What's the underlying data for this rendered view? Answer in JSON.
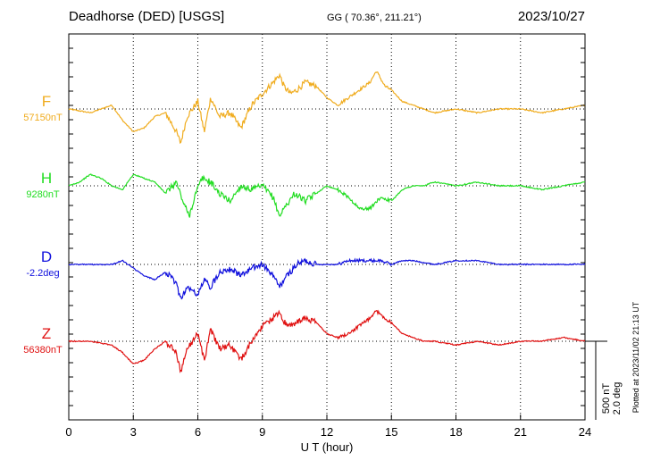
{
  "header": {
    "station": "Deadhorse (DED)  [USGS]",
    "coords": "GG ( 70.36°, 211.21°)",
    "date": "2023/10/27"
  },
  "footer": {
    "plotted": "Plotted at 2023/11/02 21:13 UT"
  },
  "scale": {
    "nt": "500 nT",
    "deg": "2.0 deg"
  },
  "colors": {
    "F": "#f0ac1e",
    "H": "#22dd22",
    "D": "#1010dd",
    "Z": "#e01010"
  },
  "chart_data": {
    "type": "line",
    "xlabel": "U T (hour)",
    "xlim": [
      0,
      24
    ],
    "xticks": [
      "0",
      "3",
      "6",
      "9",
      "12",
      "15",
      "18",
      "21",
      "24"
    ],
    "series": [
      {
        "name": "F",
        "baseline": "57150nT",
        "x": [
          0,
          1,
          2,
          2.5,
          3,
          3.5,
          4,
          4.5,
          5,
          5.2,
          5.5,
          6,
          6.3,
          6.6,
          7,
          7.5,
          8,
          8.5,
          9,
          9.5,
          9.8,
          10,
          10.3,
          10.6,
          11,
          11.5,
          12,
          12.5,
          13,
          13.5,
          14,
          14.3,
          14.7,
          15,
          15.5,
          16,
          16.5,
          17,
          18,
          19,
          20,
          21,
          22,
          23,
          24
        ],
        "y": [
          0,
          -5,
          5,
          -15,
          -30,
          -25,
          -10,
          -5,
          -30,
          -45,
          -10,
          10,
          -30,
          15,
          -10,
          -5,
          -25,
          5,
          20,
          35,
          45,
          30,
          20,
          25,
          35,
          30,
          15,
          5,
          15,
          25,
          35,
          50,
          30,
          25,
          10,
          5,
          0,
          -5,
          0,
          -5,
          0,
          0,
          -5,
          0,
          5
        ]
      },
      {
        "name": "H",
        "baseline": "9280nT",
        "x": [
          0,
          0.5,
          1,
          1.5,
          2,
          2.5,
          3,
          3.5,
          4,
          4.5,
          5,
          5.3,
          5.6,
          5.9,
          6.2,
          6.6,
          7,
          7.5,
          8,
          8.5,
          9,
          9.5,
          9.8,
          10,
          10.5,
          11,
          11.5,
          12,
          12.5,
          13,
          13.5,
          14,
          14.5,
          15,
          15.5,
          16,
          16.5,
          17,
          18,
          19,
          20,
          21,
          22,
          23,
          24
        ],
        "y": [
          0,
          5,
          15,
          10,
          0,
          -5,
          15,
          10,
          5,
          -10,
          5,
          -20,
          -40,
          -10,
          10,
          5,
          -10,
          -20,
          0,
          -5,
          0,
          -15,
          -40,
          -30,
          -10,
          -20,
          -10,
          0,
          -5,
          -15,
          -30,
          -30,
          -15,
          -20,
          -5,
          0,
          0,
          5,
          0,
          5,
          0,
          0,
          -5,
          0,
          5
        ]
      },
      {
        "name": "D",
        "baseline": "-2.2deg",
        "x": [
          0,
          1,
          2,
          2.5,
          3,
          3.5,
          4,
          4.5,
          5,
          5.2,
          5.5,
          6,
          6.3,
          6.6,
          7,
          7.5,
          8,
          8.5,
          9,
          9.5,
          9.8,
          10,
          10.3,
          10.6,
          11,
          11.5,
          12,
          12.5,
          13,
          13.5,
          14,
          14.5,
          15,
          15.5,
          16,
          17,
          18,
          19,
          20,
          21,
          22,
          23,
          24
        ],
        "y": [
          0,
          0,
          0,
          5,
          -5,
          -15,
          -20,
          -10,
          -25,
          -45,
          -30,
          -40,
          -20,
          -30,
          -10,
          -5,
          -15,
          -5,
          0,
          -15,
          -30,
          -20,
          -10,
          0,
          5,
          0,
          0,
          0,
          5,
          5,
          5,
          5,
          0,
          5,
          5,
          0,
          5,
          5,
          0,
          0,
          0,
          0,
          0
        ]
      },
      {
        "name": "Z",
        "baseline": "56380nT",
        "x": [
          0,
          1,
          2,
          2.5,
          3,
          3.5,
          4,
          4.5,
          5,
          5.2,
          5.5,
          6,
          6.3,
          6.6,
          7,
          7.5,
          8,
          8.5,
          9,
          9.5,
          9.8,
          10,
          10.3,
          10.6,
          11,
          11.5,
          12,
          12.5,
          13,
          13.5,
          14,
          14.3,
          14.7,
          15,
          15.5,
          16,
          16.5,
          17,
          18,
          19,
          20,
          21,
          22,
          23,
          24
        ],
        "y": [
          0,
          0,
          -5,
          -15,
          -30,
          -25,
          -10,
          0,
          -15,
          -40,
          -10,
          10,
          -25,
          15,
          -10,
          -5,
          -25,
          0,
          20,
          30,
          40,
          25,
          20,
          25,
          30,
          25,
          10,
          5,
          10,
          20,
          30,
          40,
          30,
          25,
          10,
          5,
          0,
          0,
          -5,
          0,
          -5,
          0,
          0,
          5,
          0
        ]
      }
    ],
    "grid": true
  }
}
